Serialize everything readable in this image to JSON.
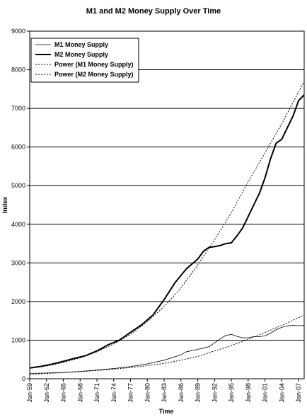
{
  "chart_data": {
    "type": "line",
    "title": "M1 and M2 Money Supply Over Time",
    "xlabel": "Time",
    "ylabel": "Index",
    "ylim": [
      0,
      9000
    ],
    "yticks": [
      0,
      1000,
      2000,
      3000,
      4000,
      5000,
      6000,
      7000,
      8000,
      9000
    ],
    "xlim": [
      1959,
      2008
    ],
    "xticks": [
      {
        "label": "Jan-59",
        "x": 1959
      },
      {
        "label": "Jan-62",
        "x": 1962
      },
      {
        "label": "Jan-65",
        "x": 1965
      },
      {
        "label": "Jan-68",
        "x": 1968
      },
      {
        "label": "Jan-71",
        "x": 1971
      },
      {
        "label": "Jan-74",
        "x": 1974
      },
      {
        "label": "Jan-77",
        "x": 1977
      },
      {
        "label": "Jan-80",
        "x": 1980
      },
      {
        "label": "Jan-83",
        "x": 1983
      },
      {
        "label": "Jan-86",
        "x": 1986
      },
      {
        "label": "Jan-89",
        "x": 1989
      },
      {
        "label": "Jan-92",
        "x": 1992
      },
      {
        "label": "Jan-95",
        "x": 1995
      },
      {
        "label": "Jan-98",
        "x": 1998
      },
      {
        "label": "Jan-01",
        "x": 2001
      },
      {
        "label": "Jan-04",
        "x": 2004
      },
      {
        "label": "Jan-07",
        "x": 2007
      }
    ],
    "grid": "horizontal",
    "legend_position": "top-left",
    "series": [
      {
        "name": "M1 Money Supply",
        "style": "solid-thin",
        "x": [
          1959,
          1962,
          1965,
          1968,
          1971,
          1974,
          1977,
          1980,
          1983,
          1986,
          1987,
          1989,
          1991,
          1993,
          1994,
          1995,
          1996,
          1997,
          1998,
          1999,
          2000,
          2001,
          2002,
          2003,
          2004,
          2005,
          2006,
          2007,
          2008
        ],
        "y": [
          140,
          148,
          165,
          190,
          225,
          265,
          315,
          385,
          480,
          620,
          700,
          760,
          830,
          1030,
          1120,
          1150,
          1100,
          1060,
          1060,
          1090,
          1090,
          1110,
          1180,
          1270,
          1330,
          1370,
          1380,
          1375,
          1380
        ]
      },
      {
        "name": "M2 Money Supply",
        "style": "solid-thick",
        "x": [
          1959,
          1961,
          1963,
          1965,
          1967,
          1969,
          1971,
          1973,
          1975,
          1977,
          1979,
          1981,
          1983,
          1985,
          1987,
          1989,
          1990,
          1991,
          1992,
          1993,
          1994,
          1995,
          1996,
          1997,
          1998,
          1999,
          2000,
          2001,
          2002,
          2003,
          2004,
          2005,
          2006,
          2007,
          2008
        ],
        "y": [
          280,
          320,
          380,
          450,
          530,
          600,
          720,
          880,
          1000,
          1200,
          1400,
          1650,
          2050,
          2500,
          2850,
          3100,
          3300,
          3400,
          3420,
          3450,
          3500,
          3520,
          3700,
          3900,
          4200,
          4500,
          4800,
          5200,
          5700,
          6100,
          6200,
          6500,
          6800,
          7200,
          7350
        ]
      },
      {
        "name": "Power (M1 Money Supply)",
        "style": "dotted",
        "x": [
          1959,
          1962,
          1965,
          1968,
          1971,
          1974,
          1977,
          1980,
          1983,
          1986,
          1989,
          1992,
          1995,
          1998,
          2001,
          2004,
          2008
        ],
        "y": [
          115,
          135,
          160,
          185,
          215,
          250,
          290,
          340,
          400,
          480,
          580,
          720,
          860,
          1020,
          1200,
          1380,
          1650
        ]
      },
      {
        "name": "Power (M2 Money Supply)",
        "style": "dotted",
        "x": [
          1959,
          1962,
          1965,
          1968,
          1971,
          1974,
          1977,
          1980,
          1983,
          1986,
          1989,
          1992,
          1995,
          1998,
          2001,
          2004,
          2008
        ],
        "y": [
          270,
          330,
          420,
          540,
          700,
          900,
          1150,
          1480,
          1870,
          2350,
          2950,
          3600,
          4300,
          5100,
          5850,
          6600,
          7700
        ]
      }
    ]
  }
}
